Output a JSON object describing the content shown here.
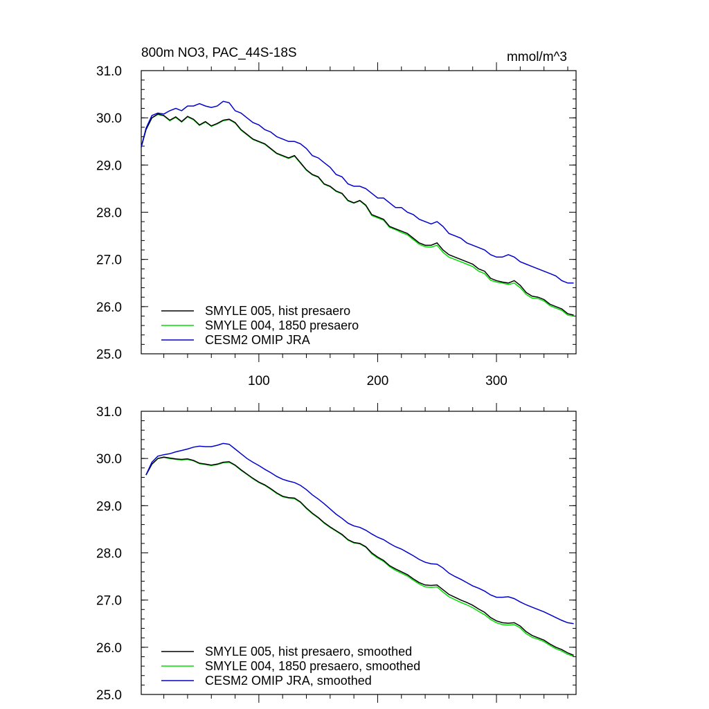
{
  "figure": {
    "title_left": "800m NO3, PAC_44S-18S",
    "title_right": "mmol/m^3"
  },
  "chart_data": [
    {
      "type": "line",
      "title": "800m NO3, PAC_44S-18S",
      "units": "mmol/m^3",
      "xlim": [
        1,
        367
      ],
      "ylim": [
        25.0,
        31.0
      ],
      "x_ticks": [
        100,
        200,
        300
      ],
      "x_tick_labels": [
        "100",
        "200",
        "300"
      ],
      "y_ticks": [
        25.0,
        26.0,
        27.0,
        28.0,
        29.0,
        30.0,
        31.0
      ],
      "y_tick_labels": [
        "25.0",
        "26.0",
        "27.0",
        "28.0",
        "29.0",
        "30.0",
        "31.0"
      ],
      "legend_position": "bottom-left",
      "series": [
        {
          "name": "SMYLE 005, hist presaero",
          "color": "#000000",
          "x": [
            1,
            5,
            10,
            15,
            20,
            25,
            30,
            35,
            40,
            45,
            50,
            55,
            60,
            65,
            70,
            75,
            80,
            85,
            90,
            95,
            100,
            105,
            110,
            115,
            120,
            125,
            130,
            135,
            140,
            145,
            150,
            155,
            160,
            165,
            170,
            175,
            180,
            185,
            190,
            195,
            200,
            205,
            210,
            215,
            220,
            225,
            230,
            235,
            240,
            245,
            250,
            255,
            260,
            265,
            270,
            275,
            280,
            285,
            290,
            295,
            300,
            305,
            310,
            315,
            320,
            325,
            330,
            335,
            340,
            345,
            350,
            355,
            360,
            365
          ],
          "y": [
            29.38,
            29.75,
            30.0,
            30.08,
            30.05,
            29.95,
            30.02,
            29.92,
            30.03,
            29.97,
            29.85,
            29.92,
            29.83,
            29.88,
            29.95,
            29.97,
            29.9,
            29.75,
            29.65,
            29.55,
            29.5,
            29.45,
            29.35,
            29.25,
            29.2,
            29.15,
            29.2,
            29.05,
            28.9,
            28.8,
            28.75,
            28.6,
            28.55,
            28.45,
            28.4,
            28.25,
            28.2,
            28.25,
            28.15,
            27.95,
            27.9,
            27.85,
            27.7,
            27.65,
            27.6,
            27.55,
            27.45,
            27.35,
            27.3,
            27.3,
            27.35,
            27.2,
            27.1,
            27.05,
            27.0,
            26.95,
            26.9,
            26.8,
            26.75,
            26.6,
            26.55,
            26.52,
            26.5,
            26.55,
            26.45,
            26.3,
            26.22,
            26.2,
            26.15,
            26.05,
            26.0,
            25.95,
            25.85,
            25.82
          ]
        },
        {
          "name": "SMYLE 004, 1850 presaero",
          "color": "#00dd00",
          "x": [
            1,
            5,
            10,
            15,
            20,
            25,
            30,
            35,
            40,
            45,
            50,
            55,
            60,
            65,
            70,
            75,
            80,
            85,
            90,
            95,
            100,
            105,
            110,
            115,
            120,
            125,
            130,
            135,
            140,
            145,
            150,
            155,
            160,
            165,
            170,
            175,
            180,
            185,
            190,
            195,
            200,
            205,
            210,
            215,
            220,
            225,
            230,
            235,
            240,
            245,
            250,
            255,
            260,
            265,
            270,
            275,
            280,
            285,
            290,
            295,
            300,
            305,
            310,
            315,
            320,
            325,
            330,
            335,
            340,
            345,
            350,
            355,
            360,
            365
          ],
          "y": [
            29.38,
            29.75,
            30.0,
            30.07,
            30.04,
            29.94,
            30.01,
            29.91,
            30.02,
            29.96,
            29.84,
            29.91,
            29.82,
            29.87,
            29.94,
            29.96,
            29.89,
            29.74,
            29.64,
            29.54,
            29.49,
            29.44,
            29.34,
            29.24,
            29.19,
            29.14,
            29.19,
            29.04,
            28.89,
            28.79,
            28.74,
            28.59,
            28.54,
            28.44,
            28.39,
            28.24,
            28.19,
            28.24,
            28.14,
            27.93,
            27.88,
            27.83,
            27.68,
            27.63,
            27.57,
            27.52,
            27.42,
            27.32,
            27.27,
            27.26,
            27.3,
            27.15,
            27.05,
            27.0,
            26.95,
            26.9,
            26.85,
            26.75,
            26.7,
            26.56,
            26.52,
            26.5,
            26.47,
            26.5,
            26.4,
            26.26,
            26.18,
            26.17,
            26.12,
            26.02,
            25.97,
            25.92,
            25.82,
            25.8
          ]
        },
        {
          "name": "CESM2 OMIP JRA",
          "color": "#0000cc",
          "x": [
            1,
            5,
            10,
            15,
            20,
            25,
            30,
            35,
            40,
            45,
            50,
            55,
            60,
            65,
            70,
            75,
            80,
            85,
            90,
            95,
            100,
            105,
            110,
            115,
            120,
            125,
            130,
            135,
            140,
            145,
            150,
            155,
            160,
            165,
            170,
            175,
            180,
            185,
            190,
            195,
            200,
            205,
            210,
            215,
            220,
            225,
            230,
            235,
            240,
            245,
            250,
            255,
            260,
            265,
            270,
            275,
            280,
            285,
            290,
            295,
            300,
            305,
            310,
            315,
            320,
            325,
            330,
            335,
            340,
            345,
            350,
            355,
            360,
            365
          ],
          "y": [
            29.38,
            29.78,
            30.05,
            30.1,
            30.08,
            30.15,
            30.2,
            30.15,
            30.25,
            30.25,
            30.3,
            30.25,
            30.22,
            30.25,
            30.35,
            30.32,
            30.15,
            30.1,
            30.0,
            29.9,
            29.85,
            29.75,
            29.7,
            29.6,
            29.55,
            29.5,
            29.5,
            29.45,
            29.35,
            29.2,
            29.15,
            29.05,
            28.95,
            28.8,
            28.75,
            28.6,
            28.55,
            28.55,
            28.5,
            28.4,
            28.3,
            28.3,
            28.2,
            28.1,
            28.1,
            28.0,
            27.95,
            27.85,
            27.8,
            27.75,
            27.8,
            27.7,
            27.55,
            27.5,
            27.45,
            27.35,
            27.3,
            27.25,
            27.2,
            27.1,
            27.05,
            27.05,
            27.1,
            27.05,
            26.95,
            26.9,
            26.85,
            26.8,
            26.75,
            26.7,
            26.65,
            26.55,
            26.5,
            26.5
          ]
        }
      ]
    },
    {
      "type": "line",
      "xlim": [
        1,
        367
      ],
      "ylim": [
        25.0,
        31.0
      ],
      "x_ticks": [
        100,
        200,
        300
      ],
      "y_ticks": [
        25.0,
        26.0,
        27.0,
        28.0,
        29.0,
        30.0,
        31.0
      ],
      "y_tick_labels": [
        "25.0",
        "26.0",
        "27.0",
        "28.0",
        "29.0",
        "30.0",
        "31.0"
      ],
      "legend_position": "bottom-left",
      "series": [
        {
          "name": "SMYLE 005, hist presaero, smoothed",
          "color": "#000000",
          "x": [
            5,
            10,
            15,
            20,
            25,
            30,
            35,
            40,
            45,
            50,
            55,
            60,
            65,
            70,
            75,
            80,
            85,
            90,
            95,
            100,
            105,
            110,
            115,
            120,
            125,
            130,
            135,
            140,
            145,
            150,
            155,
            160,
            165,
            170,
            175,
            180,
            185,
            190,
            195,
            200,
            205,
            210,
            215,
            220,
            225,
            230,
            235,
            240,
            245,
            250,
            255,
            260,
            265,
            270,
            275,
            280,
            285,
            290,
            295,
            300,
            305,
            310,
            315,
            320,
            325,
            330,
            335,
            340,
            345,
            350,
            355,
            360,
            365
          ],
          "y": [
            29.65,
            29.88,
            30.0,
            30.03,
            30.01,
            29.99,
            29.98,
            29.99,
            29.96,
            29.9,
            29.88,
            29.86,
            29.88,
            29.92,
            29.93,
            29.86,
            29.76,
            29.67,
            29.58,
            29.5,
            29.44,
            29.36,
            29.27,
            29.2,
            29.17,
            29.16,
            29.08,
            28.95,
            28.84,
            28.75,
            28.64,
            28.55,
            28.47,
            28.39,
            28.28,
            28.22,
            28.2,
            28.13,
            28.0,
            27.91,
            27.84,
            27.73,
            27.66,
            27.6,
            27.54,
            27.45,
            27.37,
            27.32,
            27.31,
            27.32,
            27.22,
            27.12,
            27.06,
            27.0,
            26.95,
            26.89,
            26.81,
            26.74,
            26.63,
            26.56,
            26.52,
            26.51,
            26.52,
            26.45,
            26.33,
            26.25,
            26.2,
            26.15,
            26.07,
            26.0,
            25.95,
            25.88,
            25.83
          ]
        },
        {
          "name": "SMYLE 004, 1850 presaero, smoothed",
          "color": "#00dd00",
          "x": [
            5,
            10,
            15,
            20,
            25,
            30,
            35,
            40,
            45,
            50,
            55,
            60,
            65,
            70,
            75,
            80,
            85,
            90,
            95,
            100,
            105,
            110,
            115,
            120,
            125,
            130,
            135,
            140,
            145,
            150,
            155,
            160,
            165,
            170,
            175,
            180,
            185,
            190,
            195,
            200,
            205,
            210,
            215,
            220,
            225,
            230,
            235,
            240,
            245,
            250,
            255,
            260,
            265,
            270,
            275,
            280,
            285,
            290,
            295,
            300,
            305,
            310,
            315,
            320,
            325,
            330,
            335,
            340,
            345,
            350,
            355,
            360,
            365
          ],
          "y": [
            29.65,
            29.88,
            30.0,
            30.02,
            30.0,
            29.98,
            29.97,
            29.98,
            29.95,
            29.89,
            29.87,
            29.85,
            29.87,
            29.91,
            29.92,
            29.85,
            29.75,
            29.66,
            29.57,
            29.49,
            29.43,
            29.35,
            29.26,
            29.19,
            29.16,
            29.15,
            29.07,
            28.94,
            28.83,
            28.74,
            28.63,
            28.54,
            28.46,
            28.38,
            28.27,
            28.21,
            28.19,
            28.12,
            27.98,
            27.89,
            27.82,
            27.71,
            27.63,
            27.57,
            27.51,
            27.42,
            27.34,
            27.28,
            27.27,
            27.28,
            27.17,
            27.07,
            27.01,
            26.95,
            26.9,
            26.84,
            26.76,
            26.69,
            26.59,
            26.52,
            26.48,
            26.47,
            26.48,
            26.41,
            26.29,
            26.21,
            26.17,
            26.12,
            26.04,
            25.97,
            25.92,
            25.85,
            25.81
          ]
        },
        {
          "name": "CESM2 OMIP JRA, smoothed",
          "color": "#0000cc",
          "x": [
            5,
            10,
            15,
            20,
            25,
            30,
            35,
            40,
            45,
            50,
            55,
            60,
            65,
            70,
            75,
            80,
            85,
            90,
            95,
            100,
            105,
            110,
            115,
            120,
            125,
            130,
            135,
            140,
            145,
            150,
            155,
            160,
            165,
            170,
            175,
            180,
            185,
            190,
            195,
            200,
            205,
            210,
            215,
            220,
            225,
            230,
            235,
            240,
            245,
            250,
            255,
            260,
            265,
            270,
            275,
            280,
            285,
            290,
            295,
            300,
            305,
            310,
            315,
            320,
            325,
            330,
            335,
            340,
            345,
            350,
            355,
            360,
            365
          ],
          "y": [
            29.65,
            29.92,
            30.05,
            30.08,
            30.1,
            30.14,
            30.17,
            30.2,
            30.24,
            30.26,
            30.25,
            30.25,
            30.28,
            30.32,
            30.3,
            30.2,
            30.1,
            30.0,
            29.92,
            29.85,
            29.77,
            29.7,
            29.62,
            29.56,
            29.52,
            29.49,
            29.43,
            29.34,
            29.23,
            29.14,
            29.04,
            28.93,
            28.82,
            28.73,
            28.63,
            28.57,
            28.54,
            28.48,
            28.4,
            28.33,
            28.28,
            28.2,
            28.13,
            28.08,
            28.01,
            27.94,
            27.86,
            27.8,
            27.77,
            27.76,
            27.68,
            27.57,
            27.5,
            27.44,
            27.37,
            27.3,
            27.25,
            27.19,
            27.11,
            27.06,
            27.06,
            27.07,
            27.03,
            26.96,
            26.9,
            26.85,
            26.8,
            26.75,
            26.69,
            26.63,
            26.57,
            26.52,
            26.5
          ]
        }
      ]
    }
  ]
}
